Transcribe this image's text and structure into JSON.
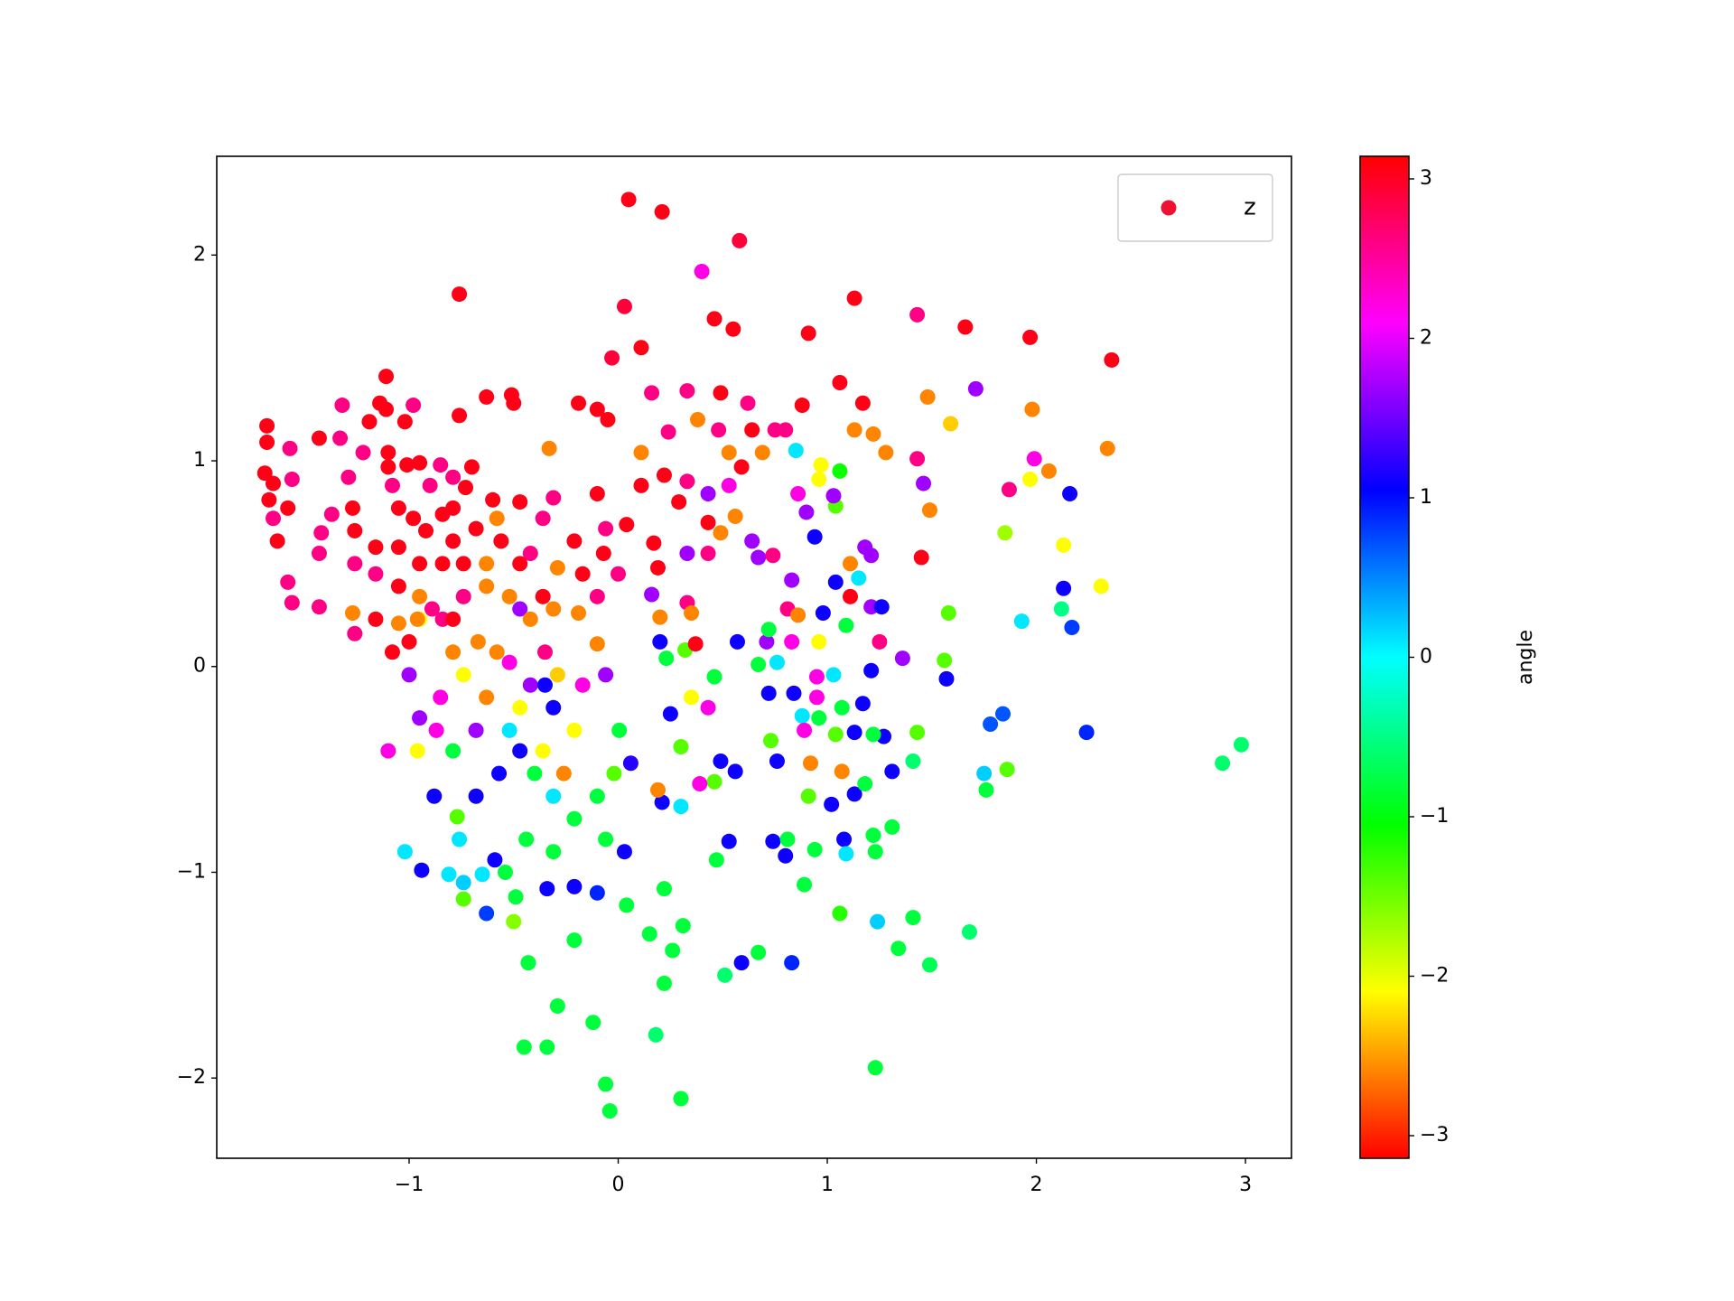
{
  "chart_data": {
    "type": "scatter",
    "series": [
      {
        "name": "z",
        "color": "#ee1133",
        "x": [
          0.05,
          0.21,
          0.58,
          0.4,
          -0.76,
          0.03,
          1.13,
          1.43,
          1.66,
          1.97,
          2.36,
          0.46,
          0.55,
          0.91,
          0.11,
          -0.03,
          1.71,
          1.48,
          1.98,
          1.59,
          2.34,
          2.06,
          1.99,
          1.97,
          1.87,
          2.16,
          1.49,
          1.45,
          1.85,
          2.13,
          2.13,
          2.31,
          1.93,
          2.12,
          2.17,
          2.24,
          1.84,
          1.78,
          1.75,
          1.86,
          1.76,
          2.89,
          2.98,
          1.57,
          1.56,
          1.58,
          1.43,
          1.41,
          1.68,
          1.49,
          1.41,
          1.23,
          1.24,
          1.34,
          1.06,
          0.83,
          0.59,
          0.67,
          0.51,
          0.3,
          -0.06,
          -0.04,
          -0.45,
          -0.34,
          0.18,
          -0.12,
          -0.29,
          -0.43,
          -0.21,
          0.26,
          0.31,
          0.15,
          0.22,
          0.04,
          0.22,
          0.89,
          -0.1,
          -0.21,
          -0.34,
          -0.49,
          -0.63,
          -0.5,
          -0.74,
          -0.94,
          -1.02,
          -0.81,
          -0.74,
          -0.65,
          -0.54,
          -0.59,
          -0.88,
          -0.77,
          -0.68,
          -0.57,
          -0.47,
          -0.4,
          -0.31,
          -0.21,
          -0.1,
          -0.02,
          0.06,
          0.005,
          -0.21,
          -0.31,
          -0.42,
          -0.52,
          -0.63,
          -0.74,
          -0.85,
          -0.95,
          -0.96,
          -1.1,
          -0.87,
          -0.79,
          -0.68,
          -0.52,
          -0.36,
          -0.26,
          -0.17,
          -0.06,
          -0.1,
          -0.47,
          -0.35,
          -0.35,
          -0.29,
          -0.58,
          -0.67,
          -0.79,
          -0.84,
          -0.95,
          -1.0,
          -0.76,
          -0.44,
          -0.31,
          -0.06,
          0.03,
          0.2,
          0.32,
          0.25,
          0.3,
          0.43,
          0.35,
          0.49,
          0.56,
          0.46,
          0.39,
          0.3,
          0.21,
          0.19,
          0.53,
          0.74,
          0.8,
          0.81,
          0.94,
          1.08,
          1.09,
          1.22,
          1.31,
          1.23,
          0.47,
          1.02,
          1.13,
          1.18,
          0.91,
          0.76,
          0.92,
          1.07,
          1.31,
          1.27,
          1.22,
          1.13,
          1.04,
          0.96,
          0.88,
          0.89,
          0.73,
          0.72,
          0.84,
          0.95,
          1.07,
          1.17,
          1.03,
          0.95,
          0.76,
          0.67,
          0.57,
          0.71,
          0.83,
          0.96,
          1.09,
          1.21,
          1.26,
          1.36,
          1.25,
          1.21,
          0.98,
          1.11,
          1.15,
          1.04,
          1.18,
          1.21,
          1.11,
          1.04,
          1.06,
          0.97,
          0.85,
          0.96,
          1.03,
          0.86,
          0.9,
          0.94,
          0.83,
          0.81,
          0.86,
          0.72,
          0.64,
          0.67,
          0.74,
          0.56,
          0.53,
          0.43,
          0.33,
          0.43,
          0.49,
          0.43,
          0.29,
          0.17,
          0.19,
          0.16,
          0.33,
          0.35,
          0.2,
          0.23,
          0.37,
          0.46,
          0.16,
          -0.1,
          -0.19,
          -0.05,
          0.11,
          0.22,
          0.33,
          0.38,
          0.48,
          0.64,
          0.75,
          0.8,
          0.88,
          0.69,
          0.59,
          0.53,
          1.22,
          1.28,
          1.13,
          1.06,
          1.17,
          1.43,
          1.46,
          0.62,
          0.49,
          0.33,
          0.24,
          0.11,
          0.04,
          0.0,
          -0.1,
          -0.19,
          -0.07,
          -0.21,
          -0.06,
          -0.1,
          -0.31,
          -0.47,
          -0.36,
          -0.29,
          -0.17,
          -1.68,
          -1.68,
          -1.69,
          -1.65,
          -1.57,
          -1.56,
          -1.67,
          -1.58,
          -1.65,
          -1.63,
          -1.58,
          -1.56,
          -1.43,
          -1.33,
          -1.32,
          -1.43,
          -1.42,
          -1.43,
          -1.29,
          -1.22,
          -1.19,
          -1.11,
          -1.11,
          -1.14,
          -0.98,
          -1.02,
          -1.1,
          -1.1,
          -1.01,
          -0.95,
          -1.08,
          -1.05,
          -0.98,
          -0.9,
          -0.85,
          -0.79,
          -0.7,
          -0.73,
          -0.79,
          -0.84,
          -0.92,
          -0.79,
          -0.68,
          -0.6,
          -0.56,
          -0.63,
          -0.74,
          -0.84,
          -0.95,
          -1.05,
          -1.16,
          -1.26,
          -1.27,
          -1.37,
          -1.26,
          -1.16,
          -1.05,
          -0.95,
          -1.27,
          -1.26,
          -1.16,
          -1.05,
          -1.0,
          -1.08,
          -0.96,
          -0.89,
          -0.79,
          -0.74,
          -0.63,
          -0.52,
          -0.47,
          -0.42,
          -0.36,
          -0.31,
          -0.47,
          -0.63,
          -0.51,
          -0.5,
          -0.76,
          -0.33,
          -0.58,
          -0.42
        ],
        "values": [
          2.27,
          2.21,
          2.07,
          1.92,
          1.81,
          1.75,
          1.79,
          1.71,
          1.65,
          1.6,
          1.49,
          1.69,
          1.64,
          1.62,
          1.55,
          1.5,
          1.35,
          1.31,
          1.25,
          1.18,
          1.06,
          0.95,
          1.01,
          0.91,
          0.86,
          0.84,
          0.76,
          0.53,
          0.65,
          0.59,
          0.38,
          0.39,
          0.22,
          0.28,
          0.19,
          -0.32,
          -0.23,
          -0.28,
          -0.52,
          -0.5,
          -0.6,
          -0.47,
          -0.38,
          -0.06,
          0.03,
          0.26,
          -0.32,
          -0.46,
          -1.29,
          -1.45,
          -1.22,
          -1.95,
          -1.24,
          -1.37,
          -1.2,
          -1.44,
          -1.44,
          -1.39,
          -1.5,
          -2.1,
          -2.03,
          -2.16,
          -1.85,
          -1.85,
          -1.79,
          -1.73,
          -1.65,
          -1.44,
          -1.33,
          -1.38,
          -1.26,
          -1.3,
          -1.54,
          -1.16,
          -1.08,
          -1.06,
          -1.1,
          -1.07,
          -1.08,
          -1.12,
          -1.2,
          -1.24,
          -1.05,
          -0.99,
          -0.9,
          -1.01,
          -1.13,
          -1.01,
          -1.0,
          -0.94,
          -0.63,
          -0.73,
          -0.63,
          -0.52,
          -0.41,
          -0.52,
          -0.63,
          -0.74,
          -0.63,
          -0.52,
          -0.47,
          -0.31,
          -0.31,
          -0.2,
          -0.09,
          0.02,
          -0.15,
          -0.04,
          -0.15,
          -0.25,
          -0.41,
          -0.41,
          -0.31,
          -0.41,
          -0.31,
          -0.31,
          -0.41,
          -0.52,
          -0.09,
          -0.04,
          0.11,
          -0.2,
          0.07,
          -0.09,
          -0.04,
          0.07,
          0.12,
          0.07,
          0.23,
          0.23,
          -0.04,
          -0.84,
          -0.84,
          -0.9,
          -0.84,
          -0.9,
          0.12,
          0.08,
          -0.23,
          -0.39,
          -0.2,
          -0.15,
          -0.46,
          -0.51,
          -0.56,
          -0.57,
          -0.68,
          -0.66,
          -0.6,
          -0.85,
          -0.85,
          -0.92,
          -0.84,
          -0.89,
          -0.84,
          -0.91,
          -0.82,
          -0.78,
          -0.9,
          -0.94,
          -0.67,
          -0.62,
          -0.57,
          -0.63,
          -0.46,
          -0.47,
          -0.51,
          -0.51,
          -0.34,
          -0.33,
          -0.32,
          -0.33,
          -0.25,
          -0.24,
          -0.31,
          -0.36,
          -0.13,
          -0.13,
          -0.15,
          -0.2,
          -0.18,
          -0.04,
          -0.05,
          0.02,
          0.01,
          0.12,
          0.12,
          0.12,
          0.12,
          0.2,
          0.29,
          0.29,
          0.04,
          0.12,
          -0.02,
          0.26,
          0.34,
          0.43,
          0.41,
          0.58,
          0.54,
          0.5,
          0.78,
          0.95,
          0.98,
          1.05,
          0.91,
          0.83,
          0.84,
          0.75,
          0.63,
          0.42,
          0.28,
          0.25,
          0.18,
          0.61,
          0.53,
          0.54,
          0.73,
          0.88,
          0.84,
          0.55,
          0.55,
          0.65,
          0.7,
          0.8,
          0.6,
          0.48,
          0.35,
          0.31,
          0.26,
          0.24,
          0.04,
          0.11,
          -0.05,
          1.33,
          1.25,
          1.28,
          1.2,
          1.04,
          0.93,
          0.9,
          1.2,
          1.15,
          1.15,
          1.15,
          1.15,
          1.27,
          1.04,
          0.97,
          1.04,
          1.13,
          1.04,
          1.15,
          1.38,
          1.28,
          1.01,
          0.89,
          1.28,
          1.33,
          1.34,
          1.14,
          0.88,
          0.69,
          0.45,
          0.34,
          0.26,
          0.55,
          0.61,
          0.67,
          0.84,
          0.82,
          0.8,
          0.72,
          0.48,
          0.45,
          1.17,
          1.09,
          0.94,
          0.89,
          1.06,
          0.91,
          0.81,
          0.77,
          0.72,
          0.61,
          0.41,
          0.31,
          1.11,
          1.11,
          1.27,
          0.29,
          0.65,
          0.55,
          0.92,
          1.04,
          1.19,
          1.25,
          1.41,
          1.28,
          1.27,
          1.19,
          1.04,
          0.97,
          0.98,
          0.99,
          0.88,
          0.77,
          0.72,
          0.88,
          0.98,
          0.92,
          0.97,
          0.87,
          0.77,
          0.74,
          0.66,
          0.61,
          0.67,
          0.81,
          0.61,
          0.5,
          0.5,
          0.5,
          0.5,
          0.58,
          0.58,
          0.66,
          0.77,
          0.74,
          0.5,
          0.45,
          0.39,
          0.34,
          0.26,
          0.16,
          0.23,
          0.21,
          0.12,
          0.07,
          0.23,
          0.28,
          0.23,
          0.34,
          0.39,
          0.34,
          0.28,
          0.23,
          0.34,
          0.28,
          0.5,
          1.31,
          1.32,
          1.28,
          1.22,
          1.06,
          0.72,
          0.55
        ],
        "c": [
          3.05,
          3.05,
          2.9,
          2.2,
          3.05,
          2.9,
          3.05,
          2.6,
          3.05,
          3.05,
          3.05,
          3.05,
          3.05,
          3.05,
          3.05,
          2.9,
          1.7,
          -2.6,
          -2.6,
          -2.3,
          -2.6,
          -2.6,
          2.2,
          -2.1,
          2.6,
          1.1,
          -2.6,
          3.05,
          -1.7,
          -2.1,
          1.1,
          -2.1,
          0.1,
          -0.5,
          0.8,
          0.9,
          0.7,
          0.7,
          0.2,
          -1.4,
          -0.8,
          -0.6,
          -0.6,
          1.1,
          -1.4,
          -1.4,
          -1.4,
          -0.6,
          -0.6,
          -0.7,
          -0.8,
          -0.8,
          0.2,
          -0.8,
          -1.2,
          0.9,
          1.1,
          -0.8,
          -0.6,
          -0.8,
          -0.8,
          -0.8,
          -0.8,
          -0.8,
          -0.6,
          -0.8,
          -0.8,
          -0.8,
          -0.8,
          -0.8,
          -0.8,
          -0.8,
          -0.8,
          -0.8,
          -0.8,
          -0.8,
          0.9,
          1.1,
          1.1,
          -0.8,
          0.8,
          -1.6,
          0.2,
          1.1,
          0.1,
          0.1,
          -1.4,
          0.1,
          -0.8,
          1.1,
          1.1,
          -1.4,
          1.1,
          1.1,
          1.1,
          -0.8,
          0.1,
          -0.8,
          -0.8,
          -1.4,
          1.2,
          -0.8,
          -2.1,
          1.1,
          1.7,
          2.2,
          -2.6,
          -2.1,
          2.2,
          1.7,
          -2.1,
          2.2,
          2.2,
          -0.8,
          1.7,
          0.1,
          -2.1,
          -2.6,
          2.2,
          1.7,
          -2.6,
          -2.1,
          2.6,
          1.1,
          -2.3,
          -2.6,
          -2.6,
          -2.6,
          2.6,
          -2.1,
          1.7,
          0.1,
          -0.8,
          -0.8,
          -0.8,
          1.1,
          1.1,
          -1.4,
          1.1,
          -1.4,
          2.2,
          -2.1,
          1.1,
          1.1,
          -1.4,
          2.2,
          0.1,
          1.1,
          -2.6,
          1.1,
          1.1,
          1.1,
          -0.8,
          -0.8,
          1.1,
          0.1,
          -0.8,
          -0.8,
          -0.8,
          -0.8,
          1.1,
          1.1,
          -0.8,
          -1.4,
          1.1,
          -2.6,
          -2.6,
          1.1,
          1.1,
          -0.8,
          1.1,
          -1.4,
          -0.8,
          0.1,
          2.2,
          -1.4,
          1.1,
          1.1,
          2.2,
          -0.8,
          1.1,
          0.1,
          2.2,
          0.1,
          -0.8,
          1.1,
          1.7,
          2.2,
          -2.1,
          -0.8,
          1.7,
          1.1,
          1.7,
          2.6,
          1.1,
          1.1,
          3.05,
          0.1,
          1.1,
          1.7,
          1.7,
          -2.6,
          -1.4,
          -1.1,
          -2.1,
          0.1,
          -2.1,
          1.7,
          2.2,
          1.7,
          1.1,
          1.7,
          2.6,
          -2.6,
          -0.8,
          1.7,
          1.7,
          2.6,
          -2.6,
          2.2,
          1.7,
          1.7,
          2.6,
          -2.6,
          3.05,
          3.05,
          3.05,
          3.05,
          1.7,
          2.6,
          -2.6,
          -2.6,
          -0.8,
          3.05,
          -0.8,
          2.6,
          3.05,
          3.05,
          3.05,
          -2.6,
          3.05,
          2.6,
          -2.6,
          2.6,
          3.05,
          2.6,
          2.6,
          3.05,
          -2.6,
          3.05,
          -2.6,
          -2.6,
          -2.6,
          -2.6,
          3.05,
          3.05,
          2.6,
          1.7,
          2.6,
          3.05,
          2.6,
          2.6,
          3.05,
          3.05,
          2.6,
          2.6,
          -2.6,
          3.05,
          3.05,
          2.6,
          3.05,
          2.6,
          3.05,
          2.6,
          -2.6,
          3.05,
          3.05,
          3.05,
          3.05,
          3.05,
          2.6,
          2.6,
          3.05,
          3.05,
          2.6,
          3.05,
          2.6,
          2.6,
          3.05,
          2.6,
          2.6,
          2.6,
          2.6,
          2.6,
          2.6,
          2.6,
          3.05,
          3.05,
          3.05,
          3.05,
          2.6,
          3.05,
          3.05,
          3.05,
          3.05,
          3.05,
          2.6,
          3.05,
          3.05,
          2.6,
          2.6,
          2.6,
          3.05,
          3.05,
          3.05,
          3.05,
          3.05,
          3.05,
          3.05,
          3.05,
          3.05,
          -2.6,
          3.05,
          3.05,
          3.05,
          3.05,
          3.05,
          3.05,
          3.05,
          2.6,
          2.6,
          2.6,
          3.05,
          -2.6,
          -2.6,
          2.6,
          3.05,
          -2.6,
          3.05,
          3.05,
          -2.6,
          2.6,
          3.05,
          2.6,
          -2.6,
          -2.6,
          1.7,
          -2.6,
          3.05,
          -2.6,
          3.05,
          3.05,
          3.05,
          3.05,
          3.05,
          -2.6,
          -2.6,
          2.6
        ]
      }
    ],
    "xlim": [
      -1.92,
      3.22
    ],
    "ylim": [
      -2.39,
      2.48
    ],
    "xticks": [
      {
        "value": -1,
        "label": "−1"
      },
      0,
      1,
      2,
      3
    ],
    "yticks": [
      {
        "value": -2,
        "label": "−2"
      },
      {
        "value": -1,
        "label": "−1"
      },
      0,
      1,
      2
    ],
    "legend": "upper right",
    "colorbar": {
      "label": "angle",
      "colormap": "hsv",
      "clim": [
        -3.14159,
        3.14159
      ],
      "ticks": [
        {
          "value": -3,
          "label": "−3"
        },
        {
          "value": -2,
          "label": "−2"
        },
        {
          "value": -1,
          "label": "−1"
        },
        0,
        1,
        2,
        3
      ]
    }
  }
}
